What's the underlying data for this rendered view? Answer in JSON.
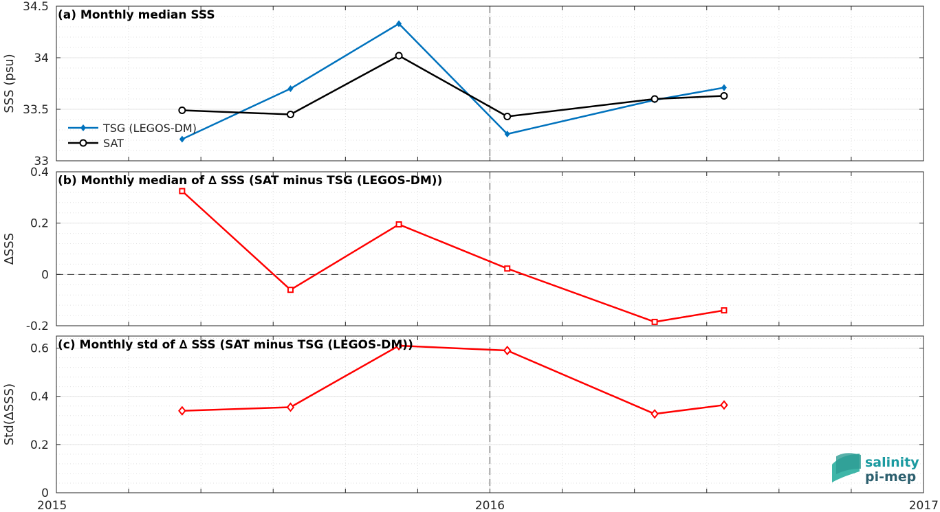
{
  "chart_data": [
    {
      "type": "line",
      "title": "(a) Monthly median SSS",
      "ylabel": "SSS (psu)",
      "xlim": [
        2015,
        2017
      ],
      "ylim": [
        33,
        34.5
      ],
      "yticks": [
        33,
        33.5,
        34,
        34.5
      ],
      "ytick_labels": [
        "33",
        "33.5",
        "34",
        "34.5"
      ],
      "grid": true,
      "legend_position": "left",
      "series": [
        {
          "name": "TSG (LEGOS-DM)",
          "color": "#0072bd",
          "marker": "filled-diamond",
          "x": [
            2015.29,
            2015.54,
            2015.79,
            2016.04,
            2016.38,
            2016.54
          ],
          "y": [
            33.21,
            33.7,
            34.33,
            33.26,
            33.59,
            33.71
          ]
        },
        {
          "name": "SAT",
          "color": "#000000",
          "marker": "open-circle",
          "x": [
            2015.29,
            2015.54,
            2015.79,
            2016.04,
            2016.38,
            2016.54
          ],
          "y": [
            33.49,
            33.45,
            34.02,
            33.43,
            33.6,
            33.63
          ]
        }
      ]
    },
    {
      "type": "line",
      "title": "(b) Monthly median of ∆ SSS (SAT minus TSG (LEGOS-DM))",
      "ylabel": "∆SSS",
      "xlim": [
        2015,
        2017
      ],
      "ylim": [
        -0.2,
        0.4
      ],
      "yticks": [
        -0.2,
        0,
        0.2,
        0.4
      ],
      "ytick_labels": [
        "-0.2",
        "0",
        "0.2",
        "0.4"
      ],
      "grid": true,
      "zero_line": true,
      "series": [
        {
          "color": "#ff0000",
          "marker": "open-square",
          "x": [
            2015.29,
            2015.54,
            2015.79,
            2016.04,
            2016.38,
            2016.54
          ],
          "y": [
            0.325,
            -0.06,
            0.195,
            0.023,
            -0.185,
            -0.14
          ]
        }
      ]
    },
    {
      "type": "line",
      "title": "(c) Monthly std of ∆ SSS (SAT minus TSG (LEGOS-DM))",
      "ylabel": "Std(∆SSS)",
      "xlim": [
        2015,
        2017
      ],
      "ylim": [
        0,
        0.65
      ],
      "yticks": [
        0,
        0.2,
        0.4,
        0.6
      ],
      "ytick_labels": [
        "0",
        "0.2",
        "0.4",
        "0.6"
      ],
      "xticks": [
        2015,
        2016,
        2017
      ],
      "xtick_labels": [
        "2015",
        "2016",
        "2017"
      ],
      "grid": true,
      "series": [
        {
          "color": "#ff0000",
          "marker": "open-diamond",
          "x": [
            2015.29,
            2015.54,
            2015.79,
            2016.04,
            2016.38,
            2016.54
          ],
          "y": [
            0.34,
            0.355,
            0.61,
            0.59,
            0.327,
            0.364
          ]
        }
      ]
    }
  ],
  "vertical_marker_x": 2016,
  "logo": {
    "line1": "salinity",
    "line2": "pi-mep"
  }
}
